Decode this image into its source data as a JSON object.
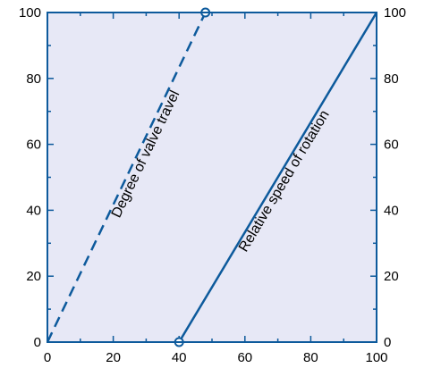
{
  "chart_data": {
    "type": "line",
    "title": "",
    "xlabel": "",
    "ylabel": "",
    "xlim": [
      0,
      100
    ],
    "ylim": [
      0,
      100
    ],
    "x_ticks": [
      0,
      20,
      40,
      60,
      80,
      100
    ],
    "y_ticks": [
      0,
      20,
      40,
      60,
      80,
      100
    ],
    "grid": false,
    "right_axis_labels": true,
    "background_color": "#e7e8f6",
    "line_color": "#0d5a9c",
    "series": [
      {
        "name": "Degree of valve travel",
        "style": "dashed",
        "points": [
          [
            0,
            0
          ],
          [
            48,
            100
          ]
        ],
        "end_marker": [
          48,
          100
        ]
      },
      {
        "name": "Relative speed of rotation",
        "style": "solid",
        "points": [
          [
            40,
            0
          ],
          [
            100,
            100
          ]
        ],
        "end_marker": [
          40,
          0
        ]
      }
    ]
  }
}
